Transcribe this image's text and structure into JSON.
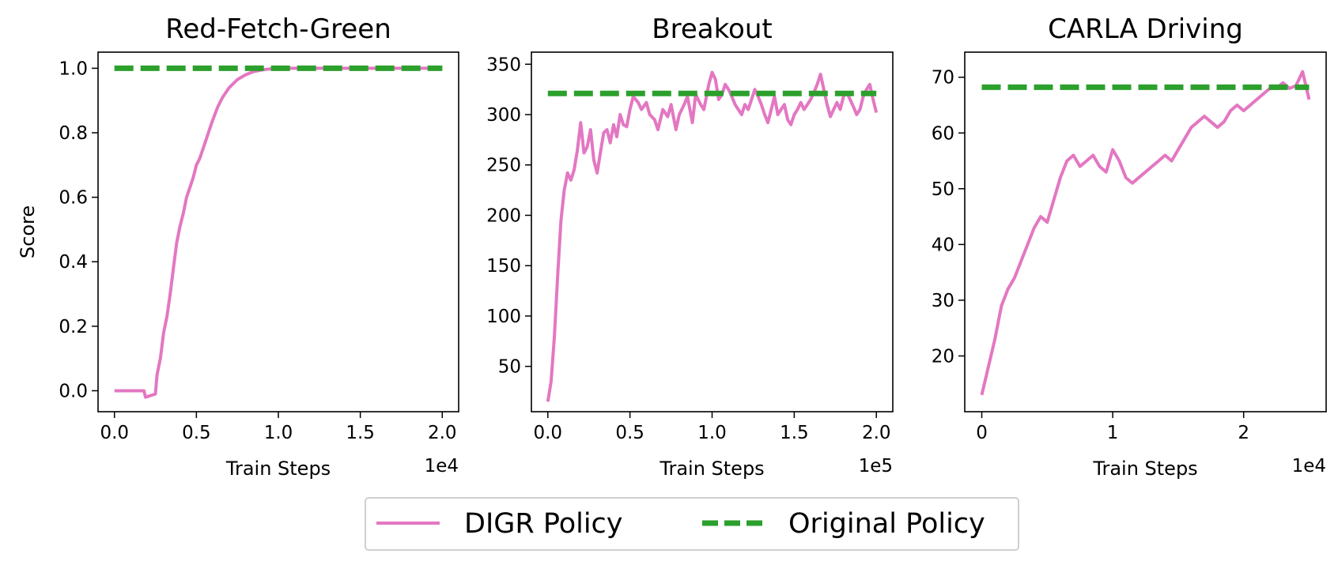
{
  "colors": {
    "digr": "#e377c2",
    "original": "#2ca02c"
  },
  "legend": {
    "digr_label": "DIGR Policy",
    "original_label": "Original Policy",
    "placement": "bottom-center"
  },
  "chart_data": [
    {
      "type": "line",
      "title": "Red-Fetch-Green",
      "xlabel": "Train Steps",
      "ylabel": "Score",
      "x_offset_text": "1e4",
      "xlim": [
        -0.1,
        2.1
      ],
      "ylim": [
        -0.065,
        1.05
      ],
      "xticks": [
        0.0,
        0.5,
        1.0,
        1.5,
        2.0
      ],
      "xtick_labels": [
        "0.0",
        "0.5",
        "1.0",
        "1.5",
        "2.0"
      ],
      "yticks": [
        0.0,
        0.2,
        0.4,
        0.6,
        0.8,
        1.0
      ],
      "ytick_labels": [
        "0.0",
        "0.2",
        "0.4",
        "0.6",
        "0.8",
        "1.0"
      ],
      "series": [
        {
          "name": "DIGR Policy",
          "style": "solid",
          "x": [
            0.0,
            0.18,
            0.19,
            0.25,
            0.26,
            0.28,
            0.3,
            0.32,
            0.34,
            0.36,
            0.38,
            0.4,
            0.42,
            0.44,
            0.46,
            0.48,
            0.5,
            0.52,
            0.54,
            0.56,
            0.58,
            0.6,
            0.63,
            0.66,
            0.7,
            0.75,
            0.8,
            0.85,
            0.9,
            0.95,
            1.0,
            1.2,
            1.5,
            2.0
          ],
          "y": [
            0.0,
            0.0,
            -0.02,
            -0.01,
            0.05,
            0.1,
            0.18,
            0.23,
            0.3,
            0.38,
            0.46,
            0.51,
            0.55,
            0.6,
            0.63,
            0.66,
            0.7,
            0.72,
            0.75,
            0.78,
            0.81,
            0.84,
            0.88,
            0.91,
            0.94,
            0.965,
            0.98,
            0.99,
            0.995,
            0.998,
            1.0,
            1.0,
            1.0,
            1.0
          ]
        },
        {
          "name": "Original Policy",
          "style": "dashed",
          "x": [
            0.0,
            2.0
          ],
          "y": [
            1.0,
            1.0
          ]
        }
      ]
    },
    {
      "type": "line",
      "title": "Breakout",
      "xlabel": "Train Steps",
      "ylabel": "",
      "x_offset_text": "1e5",
      "xlim": [
        -0.1,
        2.1
      ],
      "ylim": [
        5,
        362
      ],
      "xticks": [
        0.0,
        0.5,
        1.0,
        1.5,
        2.0
      ],
      "xtick_labels": [
        "0.0",
        "0.5",
        "1.0",
        "1.5",
        "2.0"
      ],
      "yticks": [
        50,
        100,
        150,
        200,
        250,
        300,
        350
      ],
      "ytick_labels": [
        "50",
        "100",
        "150",
        "200",
        "250",
        "300",
        "350"
      ],
      "series": [
        {
          "name": "DIGR Policy",
          "style": "solid",
          "x": [
            0.0,
            0.02,
            0.04,
            0.06,
            0.08,
            0.1,
            0.12,
            0.14,
            0.16,
            0.18,
            0.2,
            0.22,
            0.24,
            0.26,
            0.28,
            0.3,
            0.32,
            0.34,
            0.36,
            0.38,
            0.4,
            0.42,
            0.44,
            0.46,
            0.48,
            0.5,
            0.52,
            0.55,
            0.57,
            0.6,
            0.62,
            0.65,
            0.67,
            0.7,
            0.73,
            0.75,
            0.78,
            0.8,
            0.83,
            0.85,
            0.88,
            0.9,
            0.93,
            0.95,
            0.98,
            1.0,
            1.02,
            1.04,
            1.06,
            1.08,
            1.1,
            1.12,
            1.14,
            1.16,
            1.18,
            1.2,
            1.22,
            1.24,
            1.26,
            1.28,
            1.3,
            1.32,
            1.34,
            1.36,
            1.38,
            1.4,
            1.42,
            1.44,
            1.46,
            1.48,
            1.5,
            1.52,
            1.54,
            1.56,
            1.58,
            1.6,
            1.62,
            1.64,
            1.66,
            1.68,
            1.7,
            1.72,
            1.74,
            1.76,
            1.78,
            1.8,
            1.82,
            1.84,
            1.86,
            1.88,
            1.9,
            1.92,
            1.94,
            1.96,
            1.98,
            2.0
          ],
          "y": [
            15,
            35,
            80,
            140,
            195,
            225,
            242,
            235,
            245,
            265,
            292,
            262,
            268,
            285,
            255,
            242,
            262,
            282,
            285,
            272,
            290,
            278,
            300,
            290,
            288,
            305,
            318,
            312,
            305,
            312,
            300,
            295,
            285,
            305,
            298,
            310,
            285,
            300,
            310,
            318,
            292,
            320,
            310,
            305,
            330,
            342,
            335,
            315,
            320,
            330,
            325,
            318,
            310,
            305,
            300,
            310,
            305,
            315,
            325,
            318,
            310,
            300,
            292,
            305,
            318,
            300,
            305,
            310,
            295,
            290,
            300,
            305,
            312,
            305,
            310,
            315,
            322,
            330,
            340,
            325,
            310,
            298,
            305,
            312,
            305,
            318,
            322,
            315,
            308,
            300,
            305,
            318,
            325,
            330,
            315,
            302
          ]
        },
        {
          "name": "Original Policy",
          "style": "dashed",
          "x": [
            0.0,
            2.0
          ],
          "y": [
            321,
            321
          ]
        }
      ]
    },
    {
      "type": "line",
      "title": "CARLA Driving",
      "xlabel": "Train Steps",
      "ylabel": "",
      "x_offset_text": "1e4",
      "xlim": [
        -0.13,
        2.63
      ],
      "ylim": [
        10,
        74.5
      ],
      "xticks": [
        0,
        1,
        2
      ],
      "xtick_labels": [
        "0",
        "1",
        "2"
      ],
      "yticks": [
        20,
        30,
        40,
        50,
        60,
        70
      ],
      "ytick_labels": [
        "20",
        "30",
        "40",
        "50",
        "60",
        "70"
      ],
      "series": [
        {
          "name": "DIGR Policy",
          "style": "solid",
          "x": [
            0.0,
            0.05,
            0.1,
            0.15,
            0.2,
            0.25,
            0.3,
            0.35,
            0.4,
            0.45,
            0.5,
            0.55,
            0.6,
            0.65,
            0.7,
            0.75,
            0.8,
            0.85,
            0.9,
            0.95,
            1.0,
            1.05,
            1.1,
            1.15,
            1.2,
            1.25,
            1.3,
            1.35,
            1.4,
            1.45,
            1.5,
            1.55,
            1.6,
            1.65,
            1.7,
            1.75,
            1.8,
            1.85,
            1.9,
            1.95,
            2.0,
            2.05,
            2.1,
            2.15,
            2.2,
            2.25,
            2.3,
            2.35,
            2.4,
            2.45,
            2.5
          ],
          "y": [
            13,
            18,
            23,
            29,
            32,
            34,
            37,
            40,
            43,
            45,
            44,
            48,
            52,
            55,
            56,
            54,
            55,
            56,
            54,
            53,
            57,
            55,
            52,
            51,
            52,
            53,
            54,
            55,
            56,
            55,
            57,
            59,
            61,
            62,
            63,
            62,
            61,
            62,
            64,
            65,
            64,
            65,
            66,
            67,
            68,
            68,
            69,
            68,
            68.5,
            71,
            66
          ]
        },
        {
          "name": "Original Policy",
          "style": "dashed",
          "x": [
            0.0,
            2.5
          ],
          "y": [
            68.2,
            68.2
          ]
        }
      ]
    }
  ]
}
